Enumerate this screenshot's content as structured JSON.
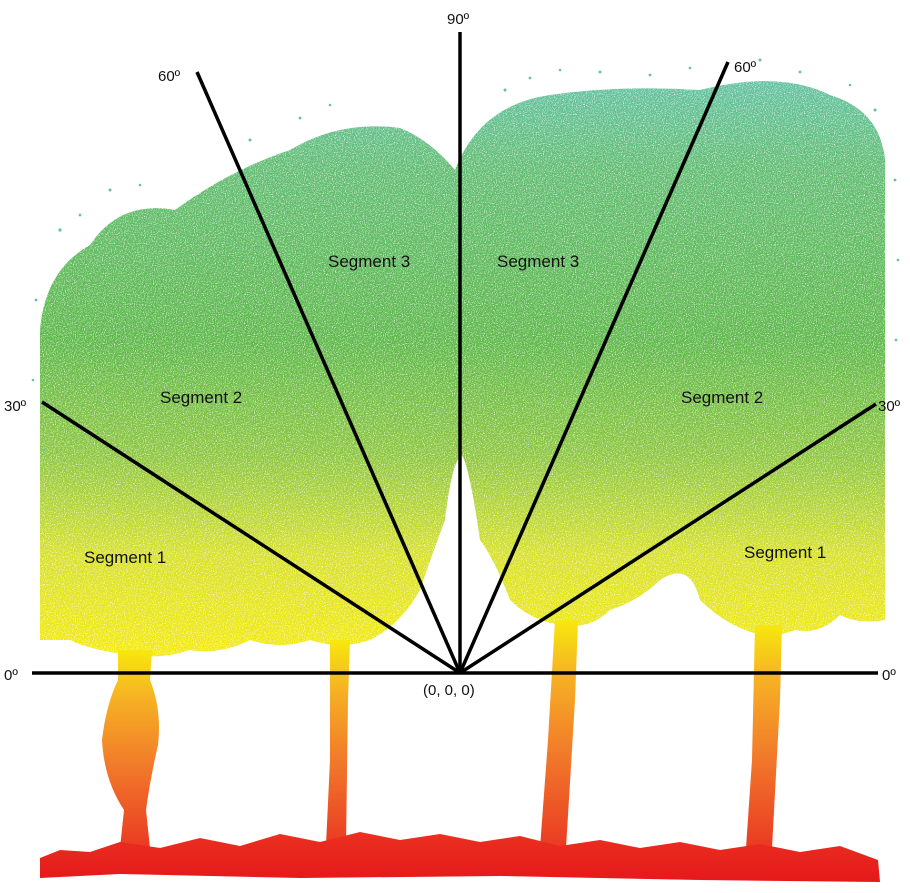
{
  "diagram": {
    "segment_labels": {
      "left_1": "Segment 1",
      "left_2": "Segment 2",
      "left_3": "Segment 3",
      "right_3": "Segment 3",
      "right_2": "Segment 2",
      "right_1": "Segment 1"
    },
    "angle_labels": {
      "left_0": "0º",
      "right_0": "0º",
      "left_30": "30º",
      "right_30": "30º",
      "left_60": "60º",
      "right_60": "60º",
      "top_90": "90º"
    },
    "origin_label": "(0, 0, 0)",
    "colors": {
      "canopy_top": "#5ebf97",
      "canopy_mid": "#5db84a",
      "canopy_low": "#c8dc32",
      "crown_base": "#f3ec10",
      "trunk_upper": "#f5b225",
      "trunk_lower": "#f06a22",
      "ground": "#e8211e",
      "lines": "#000000"
    }
  }
}
